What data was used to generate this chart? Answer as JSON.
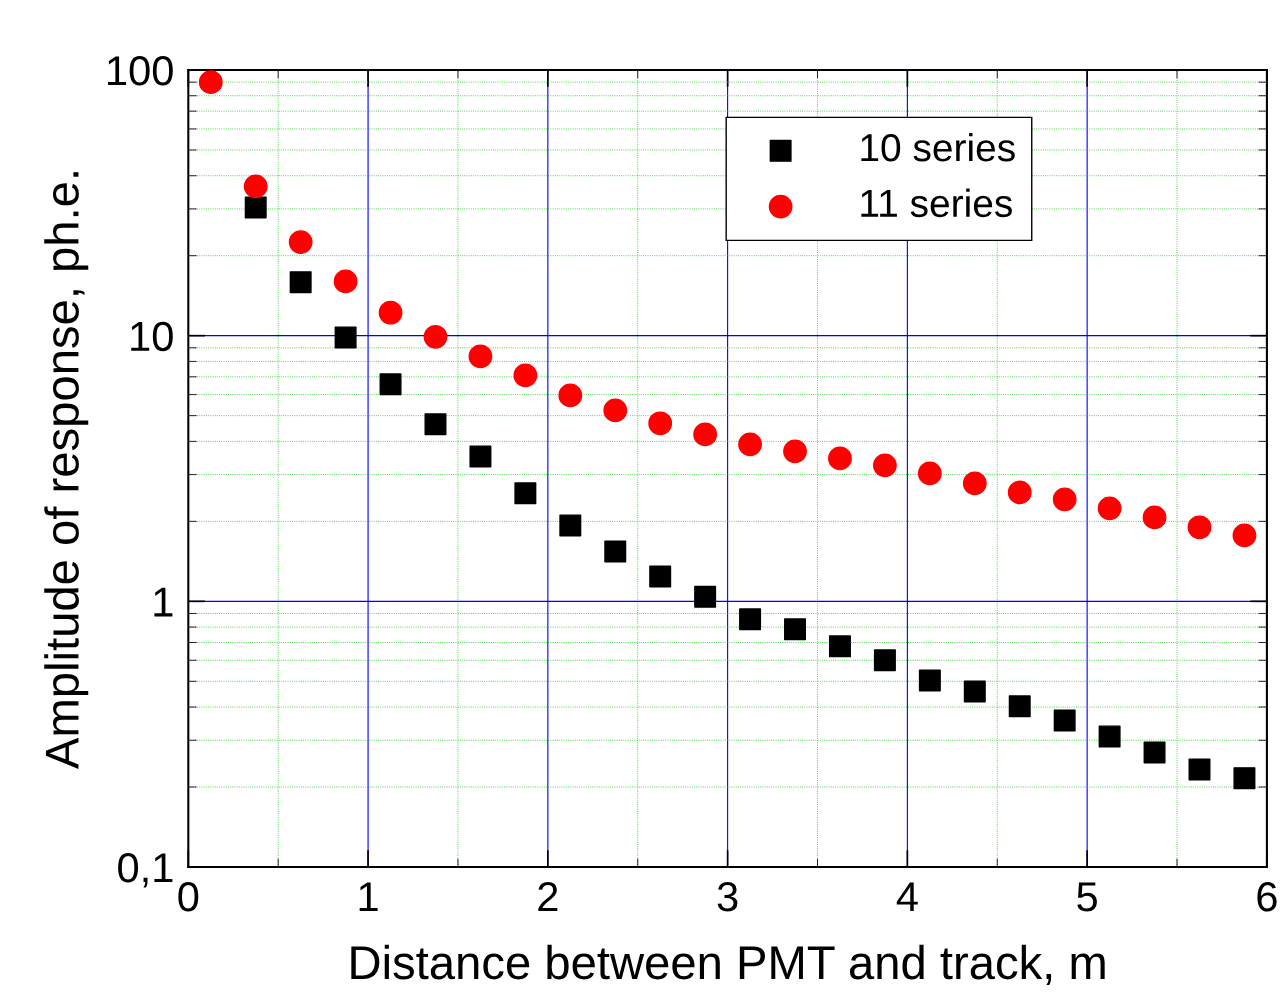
{
  "chart_data": {
    "type": "scatter",
    "xlabel": "Distance between PMT and track, m",
    "ylabel": "Amplitude of response, ph.e.",
    "x": [
      0.125,
      0.375,
      0.625,
      0.875,
      1.125,
      1.375,
      1.625,
      1.875,
      2.125,
      2.375,
      2.625,
      2.875,
      3.125,
      3.375,
      3.625,
      3.875,
      4.125,
      4.375,
      4.625,
      4.875,
      5.125,
      5.375,
      5.625,
      5.875
    ],
    "series": [
      {
        "name": "10 series",
        "color": "#000000",
        "marker": "square",
        "values": [
          null,
          30.4,
          15.9,
          9.85,
          6.56,
          4.64,
          3.51,
          2.55,
          1.93,
          1.54,
          1.24,
          1.04,
          0.856,
          0.785,
          0.677,
          0.6,
          0.504,
          0.458,
          0.403,
          0.356,
          0.31,
          0.27,
          0.233,
          0.216
        ]
      },
      {
        "name": "11 series",
        "color": "#ff0000",
        "marker": "circle",
        "values": [
          90,
          36.5,
          22.5,
          16.0,
          12.2,
          9.9,
          8.36,
          7.09,
          5.96,
          5.23,
          4.68,
          4.25,
          3.9,
          3.67,
          3.45,
          3.25,
          3.03,
          2.78,
          2.57,
          2.42,
          2.24,
          2.07,
          1.9,
          1.77
        ]
      }
    ],
    "xlim": [
      0,
      6
    ],
    "xticks": [
      0,
      {
        "value": 0.5,
        "label": null
      },
      1,
      {
        "value": 1.5,
        "label": null
      },
      2,
      {
        "value": 2.5,
        "label": null
      },
      3,
      {
        "value": 3.5,
        "label": null
      },
      4,
      {
        "value": 4.5,
        "label": null
      },
      5,
      {
        "value": 5.5,
        "label": null
      },
      6
    ],
    "ylim": [
      0.1,
      100
    ],
    "yticks": [
      {
        "value": 0.1,
        "label": "0,1"
      },
      {
        "value": 0.2,
        "label": null
      },
      {
        "value": 0.3,
        "label": null
      },
      {
        "value": 0.4,
        "label": null
      },
      {
        "value": 0.5,
        "label": null
      },
      {
        "value": 0.6,
        "label": null
      },
      {
        "value": 0.7,
        "label": null
      },
      {
        "value": 0.8,
        "label": null
      },
      {
        "value": 0.9,
        "label": null
      },
      1,
      {
        "value": 2,
        "label": null
      },
      {
        "value": 3,
        "label": null
      },
      {
        "value": 4,
        "label": null
      },
      {
        "value": 5,
        "label": null
      },
      {
        "value": 6,
        "label": null
      },
      {
        "value": 7,
        "label": null
      },
      {
        "value": 8,
        "label": null
      },
      {
        "value": 9,
        "label": null
      },
      10,
      {
        "value": 20,
        "label": null
      },
      {
        "value": 30,
        "label": null
      },
      {
        "value": 40,
        "label": null
      },
      {
        "value": 50,
        "label": null
      },
      {
        "value": 60,
        "label": null
      },
      {
        "value": 70,
        "label": null
      },
      {
        "value": 80,
        "label": null
      },
      {
        "value": 90,
        "label": null
      },
      100
    ],
    "log": "y",
    "grid": true,
    "legend": "top right"
  }
}
